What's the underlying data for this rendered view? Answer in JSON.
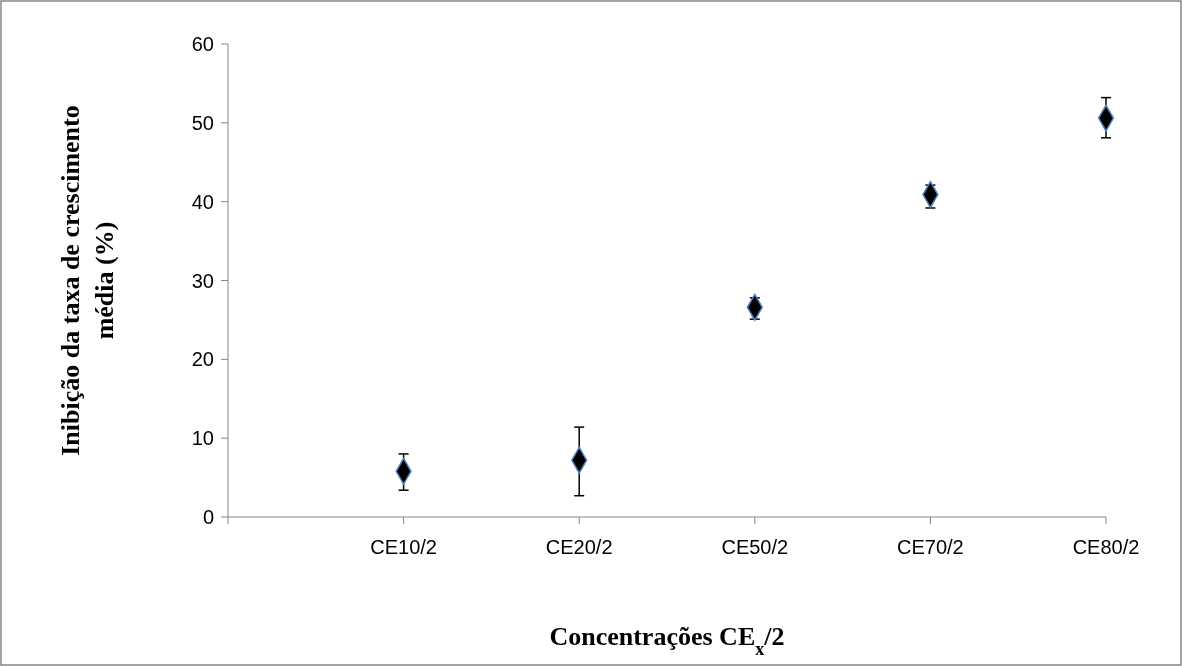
{
  "chart_data": {
    "type": "scatter",
    "xlabel": "Concentrações CE$_{x}$/2",
    "ylabel": "Inibição da taxa de crescimento média (%)",
    "categories": [
      null,
      "CE10/2",
      "CE20/2",
      "CE50/2",
      "CE70/2",
      "CE80/2"
    ],
    "series": [
      {
        "color": "#000000",
        "values": [
          null,
          5.8,
          7.2,
          26.6,
          40.9,
          50.6
        ],
        "errors": [
          null,
          [
            3.4,
            8.0
          ],
          [
            2.7,
            11.4
          ],
          [
            25.1,
            27.8
          ],
          [
            39.2,
            42.1
          ],
          [
            48.1,
            53.2
          ]
        ]
      }
    ],
    "ylim": [
      0,
      60
    ],
    "yticks": [
      0,
      10,
      20,
      30,
      40,
      50,
      60
    ],
    "grid": false,
    "marker": "diamond"
  }
}
